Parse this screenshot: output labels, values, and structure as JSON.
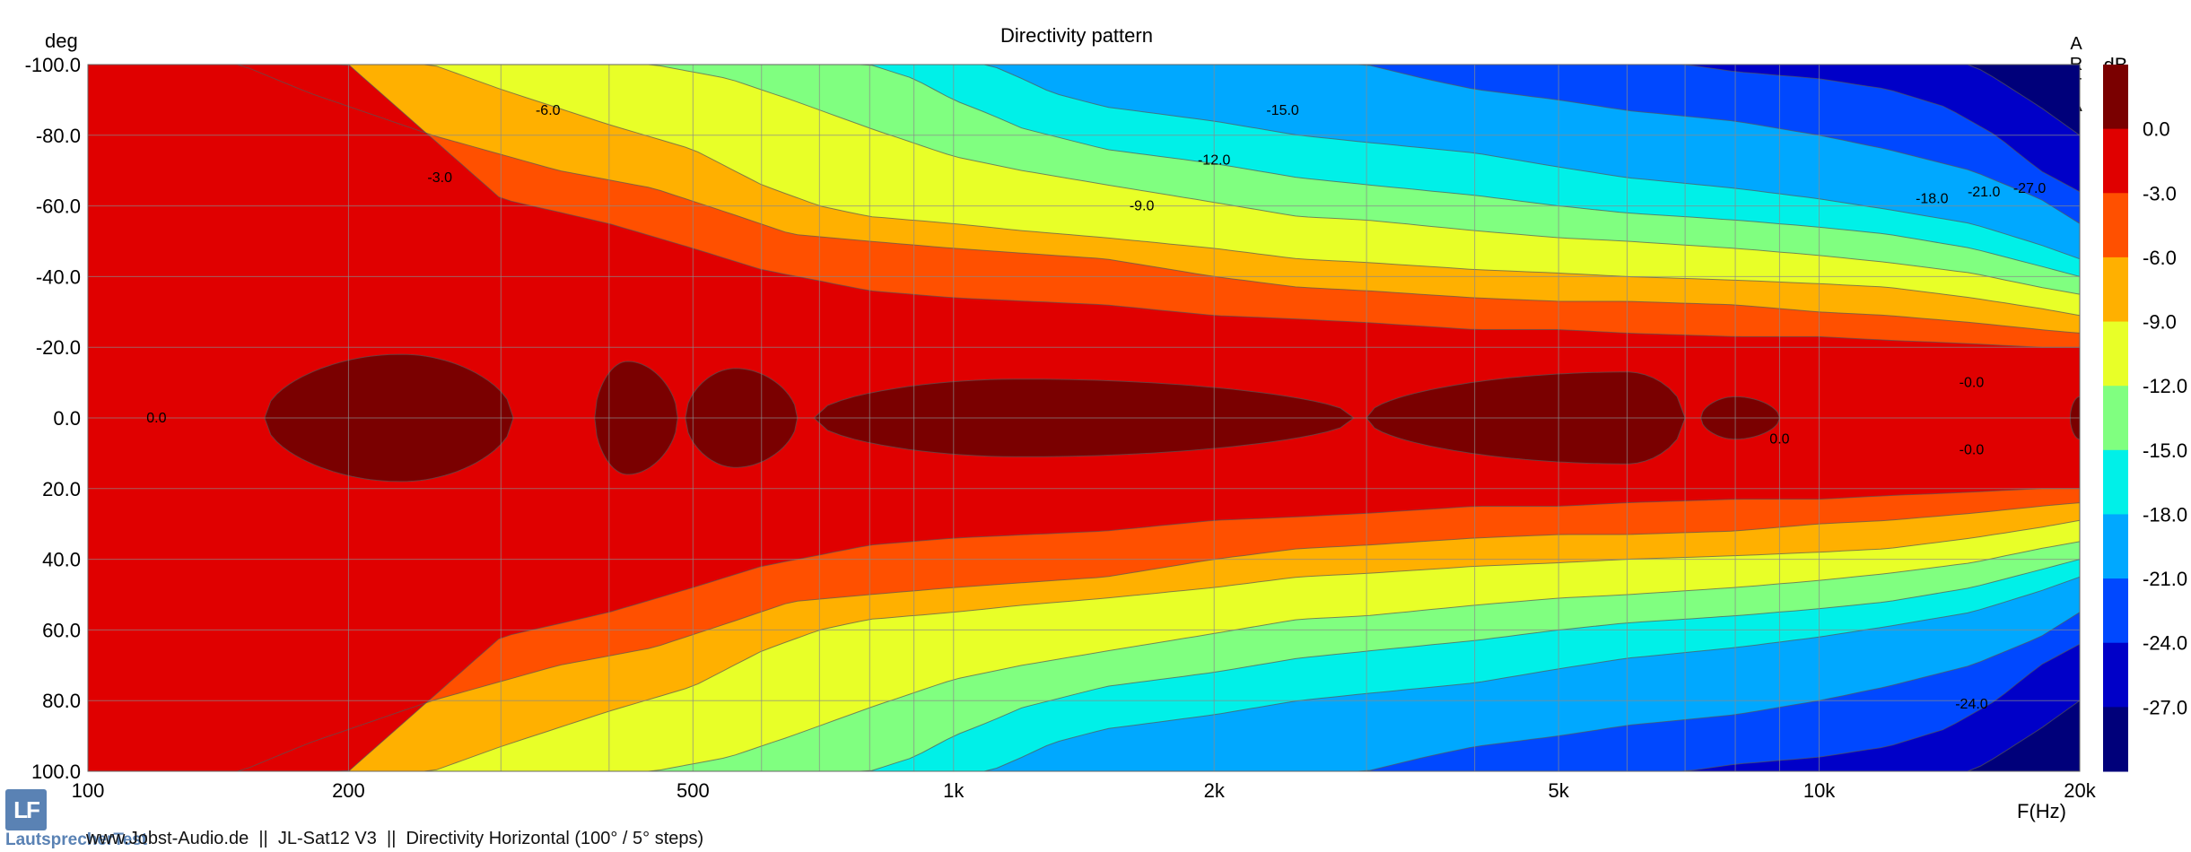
{
  "chart_data": {
    "type": "heatmap",
    "title": "Directivity pattern",
    "xlabel": "F(Hz)",
    "ylabel": "deg",
    "colorbar_label": "dB",
    "watermark": "ARTA",
    "x_scale": "log",
    "xlim": [
      100,
      20000
    ],
    "ylim": [
      -100,
      100
    ],
    "grid": true,
    "x_ticks": [
      100,
      200,
      500,
      1000,
      2000,
      5000,
      10000,
      20000
    ],
    "x_tick_labels": [
      "100",
      "200",
      "500",
      "1k",
      "2k",
      "5k",
      "10k",
      "20k"
    ],
    "y_ticks": [
      -100,
      -80,
      -60,
      -40,
      -20,
      0,
      20,
      40,
      60,
      80,
      100
    ],
    "y_tick_labels": [
      "-100.0",
      "-80.0",
      "-60.0",
      "-40.0",
      "-20.0",
      "0.0",
      "20.0",
      "40.0",
      "60.0",
      "80.0",
      "100.0"
    ],
    "levels": [
      0,
      -3,
      -6,
      -9,
      -12,
      -15,
      -18,
      -21,
      -24,
      -27
    ],
    "level_labels": [
      "0.0",
      "-3.0",
      "-6.0",
      "-9.0",
      "-12.0",
      "-15.0",
      "-18.0",
      "-21.0",
      "-24.0",
      "-27.0"
    ],
    "level_colors": [
      "#7a0000",
      "#e00000",
      "#ff5000",
      "#ffb000",
      "#e8ff28",
      "#80ff80",
      "#00f0e8",
      "#00a8ff",
      "#0048ff",
      "#0000c8",
      "#00007a"
    ],
    "contours": [
      {
        "level": -3,
        "x": [
          100,
          150,
          200,
          300,
          400,
          500,
          600,
          800,
          1000,
          1500,
          2000,
          2500,
          3000,
          4000,
          5000,
          6000,
          8000,
          10000,
          12000,
          15000,
          18000,
          20000
        ],
        "angle": [
          100,
          100,
          100,
          62,
          55,
          48,
          42,
          36,
          34,
          32,
          29,
          28,
          27,
          25,
          25,
          24,
          23,
          23,
          22,
          21,
          20,
          20
        ]
      },
      {
        "level": -6,
        "x": [
          100,
          150,
          180,
          250,
          350,
          450,
          550,
          650,
          800,
          1000,
          1500,
          2000,
          2500,
          3000,
          4000,
          5000,
          6000,
          8000,
          10000,
          12000,
          15000,
          18000,
          20000
        ],
        "angle": [
          100,
          100,
          92,
          80,
          70,
          65,
          58,
          52,
          50,
          48,
          45,
          40,
          37,
          36,
          34,
          33,
          33,
          32,
          30,
          29,
          27,
          25,
          24
        ]
      },
      {
        "level": -9,
        "x": [
          100,
          250,
          300,
          400,
          500,
          600,
          700,
          800,
          1000,
          1200,
          1500,
          2000,
          2500,
          3000,
          4000,
          5000,
          6000,
          8000,
          10000,
          12000,
          15000,
          18000,
          20000
        ],
        "angle": [
          100,
          100,
          93,
          83,
          76,
          66,
          60,
          57,
          55,
          53,
          51,
          48,
          45,
          44,
          42,
          41,
          40,
          39,
          38,
          37,
          34,
          31,
          29
        ]
      },
      {
        "level": -12,
        "x": [
          100,
          450,
          550,
          650,
          800,
          1000,
          1200,
          1500,
          2000,
          2500,
          3000,
          4000,
          5000,
          6000,
          8000,
          10000,
          12000,
          15000,
          18000,
          20000
        ],
        "angle": [
          100,
          100,
          96,
          90,
          82,
          74,
          70,
          66,
          61,
          57,
          56,
          53,
          51,
          50,
          48,
          46,
          44,
          41,
          37,
          35
        ]
      },
      {
        "level": -15,
        "x": [
          100,
          800,
          900,
          1000,
          1100,
          1200,
          1500,
          2000,
          2500,
          3000,
          4000,
          5000,
          6000,
          8000,
          10000,
          12000,
          15000,
          18000,
          20000
        ],
        "angle": [
          100,
          100,
          96,
          90,
          86,
          82,
          76,
          72,
          68,
          66,
          63,
          60,
          58,
          56,
          54,
          52,
          48,
          43,
          40
        ]
      },
      {
        "level": -18,
        "x": [
          100,
          1100,
          1200,
          1300,
          1500,
          2000,
          2500,
          3000,
          4000,
          5000,
          6000,
          8000,
          10000,
          12000,
          15000,
          18000,
          20000
        ],
        "angle": [
          100,
          100,
          96,
          92,
          88,
          84,
          80,
          78,
          75,
          71,
          68,
          65,
          62,
          59,
          55,
          49,
          45
        ]
      },
      {
        "level": -21,
        "x": [
          100,
          3000,
          3500,
          4000,
          5000,
          6000,
          8000,
          10000,
          12000,
          15000,
          18000,
          20000
        ],
        "angle": [
          100,
          100,
          96,
          93,
          90,
          87,
          84,
          80,
          76,
          70,
          62,
          55
        ]
      },
      {
        "level": -24,
        "x": [
          100,
          7000,
          8000,
          10000,
          12000,
          14000,
          16000,
          18000,
          20000
        ],
        "angle": [
          100,
          100,
          98,
          96,
          93,
          88,
          80,
          70,
          64
        ]
      },
      {
        "level": -27,
        "x": [
          100,
          15000,
          16000,
          18000,
          20000
        ],
        "angle": [
          100,
          100,
          96,
          88,
          80
        ]
      }
    ],
    "peak_regions_0dB": [
      {
        "x_start": 160,
        "x_end": 310,
        "peak_freq": 230,
        "half_width_deg": 18
      },
      {
        "x_start": 385,
        "x_end": 480,
        "peak_freq": 420,
        "half_width_deg": 16
      },
      {
        "x_start": 490,
        "x_end": 660,
        "peak_freq": 560,
        "half_width_deg": 14
      },
      {
        "x_start": 690,
        "x_end": 2900,
        "peak_freq": 1200,
        "half_width_deg": 11
      },
      {
        "x_start": 3000,
        "x_end": 7000,
        "peak_freq": 6000,
        "half_width_deg": 13
      },
      {
        "x_start": 7300,
        "x_end": 9000,
        "peak_freq": 8000,
        "half_width_deg": 6
      },
      {
        "x_start": 19500,
        "x_end": 20000,
        "peak_freq": 20000,
        "half_width_deg": 6
      }
    ],
    "contour_labels": [
      {
        "text": "0.0",
        "x": 120,
        "angle": 0
      },
      {
        "text": "-3.0",
        "x": 255,
        "angle": -68
      },
      {
        "text": "-6.0",
        "x": 340,
        "angle": -87
      },
      {
        "text": "-9.0",
        "x": 1650,
        "angle": -60
      },
      {
        "text": "-12.0",
        "x": 2000,
        "angle": -73
      },
      {
        "text": "-15.0",
        "x": 2400,
        "angle": -87
      },
      {
        "text": "-18.0",
        "x": 13500,
        "angle": -62
      },
      {
        "text": "-21.0",
        "x": 15500,
        "angle": -64
      },
      {
        "text": "-27.0",
        "x": 17500,
        "angle": -65
      },
      {
        "text": "0.0",
        "x": 9000,
        "angle": 6
      },
      {
        "text": "-0.0",
        "x": 15000,
        "angle": 9
      },
      {
        "text": "-0.0",
        "x": 15000,
        "angle": -10
      },
      {
        "text": "-24.0",
        "x": 15000,
        "angle": 81
      }
    ]
  },
  "footer": {
    "logo_text": "LF",
    "brand": "LautsprecherTest",
    "caption": "www.Jobst-Audio.de  ||  JL-Sat12 V3  ||  Directivity Horizontal (100° / 5° steps)"
  }
}
